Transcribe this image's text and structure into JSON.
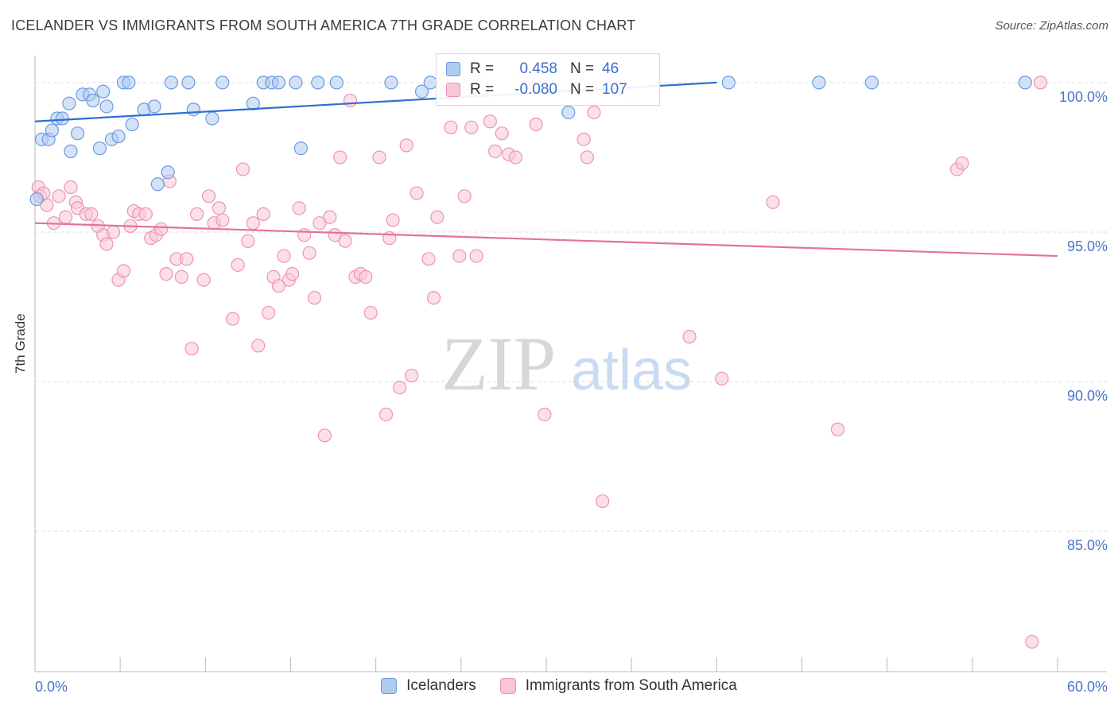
{
  "header": {
    "title": "ICELANDER VS IMMIGRANTS FROM SOUTH AMERICA 7TH GRADE CORRELATION CHART",
    "source": "Source: ZipAtlas.com"
  },
  "watermark": {
    "zip": "ZIP",
    "atlas": "atlas"
  },
  "legend": {
    "rows": [
      {
        "r_label": "R =",
        "r_value": "0.458",
        "n_label": "N =",
        "n_value": "46"
      },
      {
        "r_label": "R =",
        "r_value": "-0.080",
        "n_label": "N =",
        "n_value": "107"
      }
    ]
  },
  "bottom_legend": {
    "series1": "Icelanders",
    "series2": "Immigrants from South America"
  },
  "colors": {
    "blue_fill": "#aecbf0",
    "blue_stroke": "#6a9be0",
    "blue_line": "#2f6fcf",
    "pink_fill": "#f9c6d6",
    "pink_stroke": "#ee93b3",
    "pink_line": "#e3729a",
    "tick_text": "#4a74c9",
    "grid": "#dddddd"
  },
  "chart_data": {
    "type": "scatter",
    "title": "ICELANDER VS IMMIGRANTS FROM SOUTH AMERICA 7TH GRADE CORRELATION CHART",
    "xlabel": "",
    "ylabel": "7th Grade",
    "xlim": [
      0,
      60
    ],
    "ylim": [
      80.3,
      100.9
    ],
    "x_tick_labels": [
      {
        "value": 0,
        "label": "0.0%"
      },
      {
        "value": 60,
        "label": "60.0%"
      }
    ],
    "y_tick_labels": [
      {
        "value": 100,
        "label": "100.0%"
      },
      {
        "value": 95,
        "label": "95.0%"
      },
      {
        "value": 90,
        "label": "90.0%"
      },
      {
        "value": 85,
        "label": "85.0%"
      }
    ],
    "grid": true,
    "legend_position": "top-center",
    "series": [
      {
        "name": "Icelanders",
        "color": "#6a9be0",
        "r": 0.458,
        "n": 46,
        "trend": {
          "x": [
            0,
            40
          ],
          "y": [
            98.7,
            100.0
          ]
        },
        "points": [
          [
            0.1,
            96.1
          ],
          [
            0.4,
            98.1
          ],
          [
            0.8,
            98.1
          ],
          [
            1.0,
            98.4
          ],
          [
            1.3,
            98.8
          ],
          [
            1.6,
            98.8
          ],
          [
            2.0,
            99.3
          ],
          [
            2.1,
            97.7
          ],
          [
            2.5,
            98.3
          ],
          [
            2.8,
            99.6
          ],
          [
            3.2,
            99.6
          ],
          [
            3.4,
            99.4
          ],
          [
            3.8,
            97.8
          ],
          [
            4.0,
            99.7
          ],
          [
            4.2,
            99.2
          ],
          [
            4.5,
            98.1
          ],
          [
            4.9,
            98.2
          ],
          [
            5.2,
            100.0
          ],
          [
            5.5,
            100.0
          ],
          [
            5.7,
            98.6
          ],
          [
            6.4,
            99.1
          ],
          [
            7.0,
            99.2
          ],
          [
            7.2,
            96.6
          ],
          [
            7.8,
            97.0
          ],
          [
            8.0,
            100.0
          ],
          [
            9.0,
            100.0
          ],
          [
            9.3,
            99.1
          ],
          [
            10.4,
            98.8
          ],
          [
            11.0,
            100.0
          ],
          [
            12.8,
            99.3
          ],
          [
            13.4,
            100.0
          ],
          [
            13.9,
            100.0
          ],
          [
            14.3,
            100.0
          ],
          [
            15.3,
            100.0
          ],
          [
            15.6,
            97.8
          ],
          [
            16.6,
            100.0
          ],
          [
            17.7,
            100.0
          ],
          [
            20.9,
            100.0
          ],
          [
            22.7,
            99.7
          ],
          [
            23.2,
            100.0
          ],
          [
            25.8,
            100.0
          ],
          [
            31.3,
            99.0
          ],
          [
            40.7,
            100.0
          ],
          [
            46.0,
            100.0
          ],
          [
            49.1,
            100.0
          ],
          [
            58.1,
            100.0
          ]
        ]
      },
      {
        "name": "Immigrants from South America",
        "color": "#ee93b3",
        "r": -0.08,
        "n": 107,
        "trend": {
          "x": [
            0,
            60
          ],
          "y": [
            95.3,
            94.2
          ]
        },
        "points": [
          [
            0.2,
            96.5
          ],
          [
            0.3,
            96.2
          ],
          [
            0.5,
            96.3
          ],
          [
            0.7,
            95.9
          ],
          [
            1.1,
            95.3
          ],
          [
            1.4,
            96.2
          ],
          [
            1.8,
            95.5
          ],
          [
            2.1,
            96.5
          ],
          [
            2.4,
            96.0
          ],
          [
            2.5,
            95.8
          ],
          [
            3.0,
            95.6
          ],
          [
            3.3,
            95.6
          ],
          [
            3.7,
            95.2
          ],
          [
            4.0,
            94.9
          ],
          [
            4.2,
            94.6
          ],
          [
            4.6,
            95.0
          ],
          [
            4.9,
            93.4
          ],
          [
            5.2,
            93.7
          ],
          [
            5.6,
            95.2
          ],
          [
            5.8,
            95.7
          ],
          [
            6.1,
            95.6
          ],
          [
            6.5,
            95.6
          ],
          [
            6.8,
            94.8
          ],
          [
            7.1,
            94.9
          ],
          [
            7.4,
            95.1
          ],
          [
            7.7,
            93.6
          ],
          [
            7.9,
            96.7
          ],
          [
            8.3,
            94.1
          ],
          [
            8.6,
            93.5
          ],
          [
            8.9,
            94.1
          ],
          [
            9.2,
            91.1
          ],
          [
            9.5,
            95.6
          ],
          [
            9.9,
            93.4
          ],
          [
            10.2,
            96.2
          ],
          [
            10.5,
            95.3
          ],
          [
            10.8,
            95.8
          ],
          [
            11.0,
            95.4
          ],
          [
            11.6,
            92.1
          ],
          [
            11.9,
            93.9
          ],
          [
            12.2,
            97.1
          ],
          [
            12.5,
            94.7
          ],
          [
            12.8,
            95.3
          ],
          [
            13.1,
            91.2
          ],
          [
            13.4,
            95.6
          ],
          [
            13.7,
            92.3
          ],
          [
            14.0,
            93.5
          ],
          [
            14.3,
            93.2
          ],
          [
            14.6,
            94.2
          ],
          [
            14.9,
            93.4
          ],
          [
            15.1,
            93.6
          ],
          [
            15.5,
            95.8
          ],
          [
            15.8,
            94.9
          ],
          [
            16.1,
            94.3
          ],
          [
            16.4,
            92.8
          ],
          [
            16.7,
            95.3
          ],
          [
            17.0,
            88.2
          ],
          [
            17.3,
            95.5
          ],
          [
            17.6,
            94.9
          ],
          [
            17.9,
            97.5
          ],
          [
            18.2,
            94.7
          ],
          [
            18.5,
            99.4
          ],
          [
            18.8,
            93.5
          ],
          [
            19.1,
            93.6
          ],
          [
            19.4,
            93.5
          ],
          [
            19.7,
            92.3
          ],
          [
            20.2,
            97.5
          ],
          [
            20.6,
            88.9
          ],
          [
            20.8,
            94.8
          ],
          [
            21.0,
            95.4
          ],
          [
            21.4,
            89.8
          ],
          [
            21.8,
            97.9
          ],
          [
            22.1,
            90.2
          ],
          [
            22.4,
            96.3
          ],
          [
            23.1,
            94.1
          ],
          [
            23.4,
            92.8
          ],
          [
            23.6,
            95.5
          ],
          [
            24.0,
            100.0
          ],
          [
            24.4,
            98.5
          ],
          [
            24.9,
            94.2
          ],
          [
            25.2,
            96.2
          ],
          [
            25.6,
            98.5
          ],
          [
            25.9,
            94.2
          ],
          [
            26.2,
            99.8
          ],
          [
            26.7,
            98.7
          ],
          [
            27.0,
            97.7
          ],
          [
            27.4,
            98.3
          ],
          [
            27.8,
            97.6
          ],
          [
            28.2,
            97.5
          ],
          [
            28.6,
            100.0
          ],
          [
            29.0,
            100.0
          ],
          [
            29.4,
            98.6
          ],
          [
            29.9,
            88.9
          ],
          [
            31.5,
            99.8
          ],
          [
            32.2,
            98.1
          ],
          [
            32.4,
            97.5
          ],
          [
            32.8,
            99.0
          ],
          [
            33.3,
            86.0
          ],
          [
            34.1,
            100.0
          ],
          [
            35.1,
            99.6
          ],
          [
            38.4,
            91.5
          ],
          [
            40.3,
            90.1
          ],
          [
            43.3,
            96.0
          ],
          [
            47.1,
            88.4
          ],
          [
            54.1,
            97.1
          ],
          [
            54.4,
            97.3
          ],
          [
            58.5,
            81.3
          ],
          [
            59.0,
            100.0
          ]
        ]
      }
    ]
  }
}
